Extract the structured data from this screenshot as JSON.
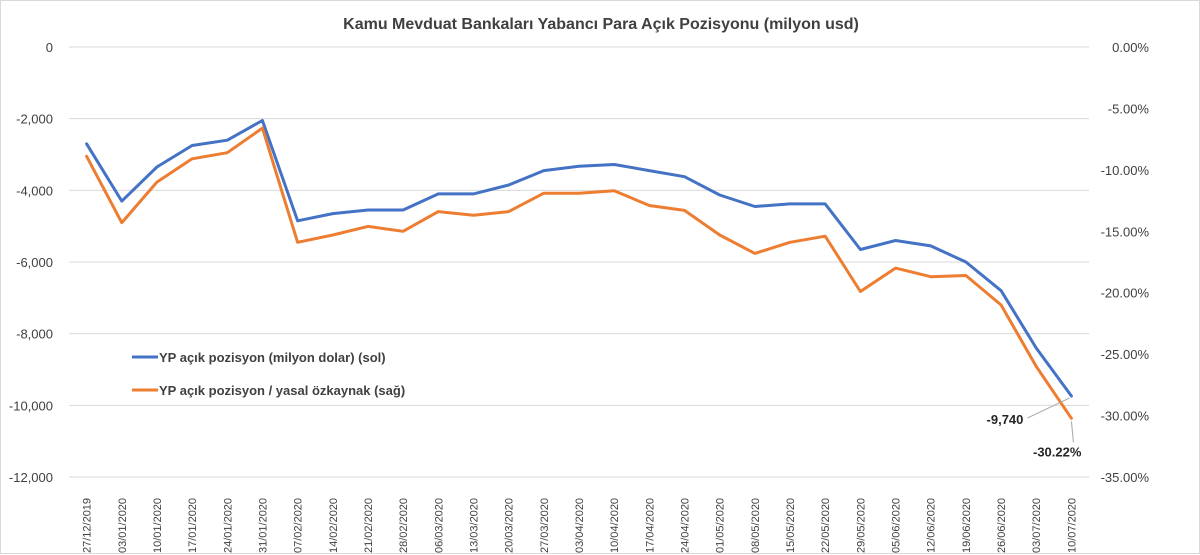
{
  "chart_data": {
    "type": "line",
    "title": "Kamu Mevduat Bankaları Yabancı Para Açık Pozisyonu (milyon usd)",
    "categories": [
      "27/12/2019",
      "03/01/2020",
      "10/01/2020",
      "17/01/2020",
      "24/01/2020",
      "31/01/2020",
      "07/02/2020",
      "14/02/2020",
      "21/02/2020",
      "28/02/2020",
      "06/03/2020",
      "13/03/2020",
      "20/03/2020",
      "27/03/2020",
      "03/04/2020",
      "10/04/2020",
      "17/04/2020",
      "24/04/2020",
      "01/05/2020",
      "08/05/2020",
      "15/05/2020",
      "22/05/2020",
      "29/05/2020",
      "05/06/2020",
      "12/06/2020",
      "19/06/2020",
      "26/06/2020",
      "03/07/2020",
      "10/07/2020"
    ],
    "y_left": {
      "min": -12000,
      "max": 0,
      "ticks": [
        "0",
        "-2,000",
        "-4,000",
        "-6,000",
        "-8,000",
        "-10,000",
        "-12,000"
      ]
    },
    "y_right": {
      "min": -35,
      "max": 0,
      "ticks": [
        "0.00%",
        "-5.00%",
        "-10.00%",
        "-15.00%",
        "-20.00%",
        "-25.00%",
        "-30.00%",
        "-35.00%"
      ]
    },
    "series": [
      {
        "name": "YP açık pozisyon (milyon dolar) (sol)",
        "axis": "left",
        "color": "#4472c4",
        "values": [
          -2700,
          -4300,
          -3350,
          -2750,
          -2600,
          -2050,
          -4850,
          -4650,
          -4550,
          -4550,
          -4100,
          -4100,
          -3850,
          -3450,
          -3330,
          -3280,
          -3450,
          -3620,
          -4130,
          -4450,
          -4380,
          -4380,
          -5650,
          -5400,
          -5550,
          -6000,
          -6800,
          -8400,
          -9740
        ]
      },
      {
        "name": "YP açık pozisyon / yasal özkaynak (sağ)",
        "axis": "right",
        "color": "#ed7d31",
        "values": [
          -8.9,
          -14.3,
          -11.0,
          -9.1,
          -8.6,
          -6.6,
          -15.9,
          -15.3,
          -14.6,
          -15.0,
          -13.4,
          -13.7,
          -13.4,
          -11.9,
          -11.9,
          -11.7,
          -12.9,
          -13.3,
          -15.3,
          -16.8,
          -15.9,
          -15.4,
          -19.9,
          -18.0,
          -18.7,
          -18.6,
          -21.0,
          -26.0,
          -30.22
        ]
      }
    ],
    "annotations": [
      {
        "series": 0,
        "label": "-9,740"
      },
      {
        "series": 1,
        "label": "-30.22%"
      }
    ],
    "legend": {
      "placement": "left-middle"
    },
    "grid": true
  }
}
